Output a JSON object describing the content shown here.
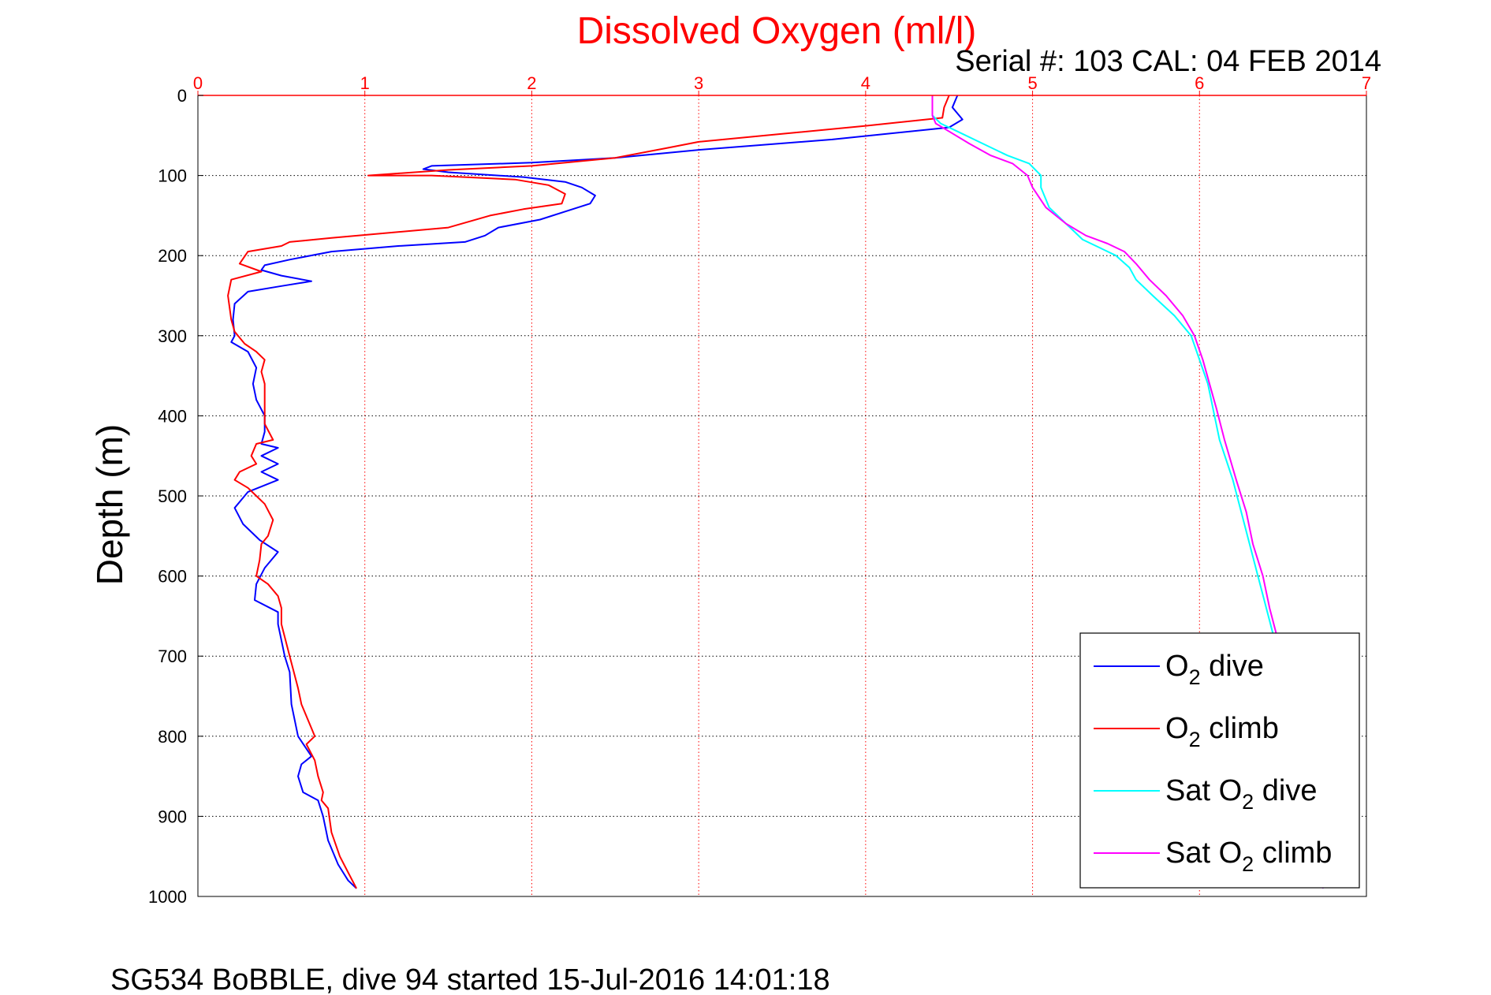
{
  "chart_data": {
    "type": "line",
    "title": "Dissolved Oxygen (ml/l)",
    "subtitle": "Serial #: 103  CAL: 04 FEB 2014",
    "ylabel": "Depth (m)",
    "footer": "SG534 BoBBLE, dive 94 started 15-Jul-2016 14:01:18",
    "xlim": [
      0,
      7
    ],
    "ylim": [
      0,
      1000
    ],
    "y_reversed": true,
    "x_axis_position": "top",
    "grid": true,
    "legend_position": "bottom-right",
    "xticks": [
      "0",
      "1",
      "2",
      "3",
      "4",
      "5",
      "6",
      "7"
    ],
    "yticks": [
      "0",
      "100",
      "200",
      "300",
      "400",
      "500",
      "600",
      "700",
      "800",
      "900",
      "1000"
    ],
    "colors": {
      "axis_x": "#ff0000",
      "grid_x": "#ff0000",
      "grid_y": "#000000"
    },
    "series": [
      {
        "key": "o2_dive",
        "legend": [
          "O",
          "2",
          " dive"
        ],
        "color": "#0000ff",
        "points": [
          [
            4.55,
            0
          ],
          [
            4.52,
            15
          ],
          [
            4.58,
            30
          ],
          [
            4.5,
            40
          ],
          [
            3.8,
            55
          ],
          [
            3.0,
            68
          ],
          [
            2.5,
            78
          ],
          [
            2.0,
            84
          ],
          [
            1.4,
            88
          ],
          [
            1.35,
            92
          ],
          [
            1.5,
            96
          ],
          [
            1.95,
            102
          ],
          [
            2.2,
            108
          ],
          [
            2.3,
            115
          ],
          [
            2.38,
            125
          ],
          [
            2.35,
            135
          ],
          [
            2.2,
            145
          ],
          [
            2.05,
            155
          ],
          [
            1.8,
            165
          ],
          [
            1.72,
            175
          ],
          [
            1.6,
            183
          ],
          [
            1.2,
            188
          ],
          [
            0.8,
            195
          ],
          [
            0.55,
            205
          ],
          [
            0.4,
            212
          ],
          [
            0.38,
            218
          ],
          [
            0.5,
            225
          ],
          [
            0.68,
            232
          ],
          [
            0.5,
            238
          ],
          [
            0.3,
            245
          ],
          [
            0.22,
            260
          ],
          [
            0.21,
            280
          ],
          [
            0.22,
            300
          ],
          [
            0.2,
            308
          ],
          [
            0.3,
            320
          ],
          [
            0.35,
            340
          ],
          [
            0.33,
            360
          ],
          [
            0.35,
            380
          ],
          [
            0.4,
            400
          ],
          [
            0.4,
            420
          ],
          [
            0.38,
            435
          ],
          [
            0.48,
            440
          ],
          [
            0.38,
            450
          ],
          [
            0.48,
            460
          ],
          [
            0.38,
            470
          ],
          [
            0.48,
            480
          ],
          [
            0.3,
            495
          ],
          [
            0.22,
            515
          ],
          [
            0.27,
            535
          ],
          [
            0.37,
            555
          ],
          [
            0.48,
            570
          ],
          [
            0.4,
            590
          ],
          [
            0.35,
            610
          ],
          [
            0.34,
            630
          ],
          [
            0.48,
            645
          ],
          [
            0.48,
            660
          ],
          [
            0.52,
            700
          ],
          [
            0.55,
            720
          ],
          [
            0.56,
            760
          ],
          [
            0.6,
            800
          ],
          [
            0.68,
            825
          ],
          [
            0.62,
            835
          ],
          [
            0.6,
            850
          ],
          [
            0.63,
            870
          ],
          [
            0.72,
            880
          ],
          [
            0.75,
            900
          ],
          [
            0.78,
            930
          ],
          [
            0.84,
            960
          ],
          [
            0.9,
            980
          ],
          [
            0.95,
            990
          ]
        ]
      },
      {
        "key": "o2_climb",
        "legend": [
          "O",
          "2",
          " climb"
        ],
        "color": "#ff0000",
        "points": [
          [
            4.5,
            0
          ],
          [
            4.47,
            15
          ],
          [
            4.46,
            28
          ],
          [
            4.0,
            38
          ],
          [
            3.5,
            48
          ],
          [
            3.0,
            58
          ],
          [
            2.8,
            66
          ],
          [
            2.5,
            78
          ],
          [
            2.0,
            88
          ],
          [
            1.5,
            93
          ],
          [
            1.02,
            100
          ],
          [
            1.4,
            100
          ],
          [
            1.9,
            105
          ],
          [
            2.1,
            112
          ],
          [
            2.2,
            123
          ],
          [
            2.18,
            135
          ],
          [
            1.95,
            142
          ],
          [
            1.75,
            150
          ],
          [
            1.5,
            165
          ],
          [
            0.8,
            178
          ],
          [
            0.55,
            183
          ],
          [
            0.5,
            188
          ],
          [
            0.3,
            195
          ],
          [
            0.25,
            210
          ],
          [
            0.38,
            220
          ],
          [
            0.2,
            230
          ],
          [
            0.18,
            250
          ],
          [
            0.2,
            280
          ],
          [
            0.22,
            295
          ],
          [
            0.28,
            310
          ],
          [
            0.35,
            320
          ],
          [
            0.4,
            330
          ],
          [
            0.38,
            345
          ],
          [
            0.4,
            360
          ],
          [
            0.4,
            390
          ],
          [
            0.4,
            410
          ],
          [
            0.45,
            430
          ],
          [
            0.35,
            435
          ],
          [
            0.32,
            450
          ],
          [
            0.35,
            460
          ],
          [
            0.25,
            470
          ],
          [
            0.22,
            480
          ],
          [
            0.3,
            490
          ],
          [
            0.35,
            500
          ],
          [
            0.4,
            510
          ],
          [
            0.45,
            530
          ],
          [
            0.42,
            550
          ],
          [
            0.38,
            560
          ],
          [
            0.37,
            580
          ],
          [
            0.35,
            600
          ],
          [
            0.42,
            610
          ],
          [
            0.48,
            625
          ],
          [
            0.5,
            640
          ],
          [
            0.5,
            660
          ],
          [
            0.55,
            700
          ],
          [
            0.6,
            740
          ],
          [
            0.62,
            760
          ],
          [
            0.68,
            790
          ],
          [
            0.7,
            800
          ],
          [
            0.65,
            810
          ],
          [
            0.7,
            830
          ],
          [
            0.72,
            850
          ],
          [
            0.75,
            870
          ],
          [
            0.74,
            880
          ],
          [
            0.78,
            890
          ],
          [
            0.8,
            920
          ],
          [
            0.85,
            950
          ],
          [
            0.9,
            970
          ],
          [
            0.95,
            990
          ]
        ]
      },
      {
        "key": "sat_dive",
        "legend": [
          "Sat O",
          "2",
          " dive"
        ],
        "color": "#00ffff",
        "points": [
          [
            4.4,
            0
          ],
          [
            4.4,
            25
          ],
          [
            4.45,
            35
          ],
          [
            4.55,
            45
          ],
          [
            4.7,
            60
          ],
          [
            4.85,
            75
          ],
          [
            4.98,
            85
          ],
          [
            5.05,
            100
          ],
          [
            5.05,
            115
          ],
          [
            5.1,
            140
          ],
          [
            5.2,
            160
          ],
          [
            5.3,
            180
          ],
          [
            5.4,
            190
          ],
          [
            5.5,
            200
          ],
          [
            5.58,
            215
          ],
          [
            5.62,
            230
          ],
          [
            5.72,
            250
          ],
          [
            5.85,
            275
          ],
          [
            5.95,
            300
          ],
          [
            6.0,
            330
          ],
          [
            6.05,
            360
          ],
          [
            6.08,
            390
          ],
          [
            6.12,
            430
          ],
          [
            6.2,
            480
          ],
          [
            6.25,
            520
          ],
          [
            6.3,
            560
          ],
          [
            6.35,
            600
          ],
          [
            6.4,
            640
          ],
          [
            6.45,
            680
          ],
          [
            6.5,
            720
          ],
          [
            6.55,
            760
          ],
          [
            6.6,
            800
          ],
          [
            6.62,
            840
          ],
          [
            6.66,
            880
          ],
          [
            6.7,
            920
          ],
          [
            6.72,
            960
          ],
          [
            6.74,
            990
          ]
        ]
      },
      {
        "key": "sat_climb",
        "legend": [
          "Sat O",
          "2",
          " climb"
        ],
        "color": "#ff00ff",
        "points": [
          [
            4.4,
            0
          ],
          [
            4.4,
            25
          ],
          [
            4.42,
            35
          ],
          [
            4.5,
            45
          ],
          [
            4.62,
            60
          ],
          [
            4.75,
            75
          ],
          [
            4.88,
            85
          ],
          [
            4.97,
            100
          ],
          [
            5.0,
            115
          ],
          [
            5.08,
            140
          ],
          [
            5.2,
            160
          ],
          [
            5.32,
            175
          ],
          [
            5.45,
            185
          ],
          [
            5.55,
            195
          ],
          [
            5.62,
            210
          ],
          [
            5.7,
            230
          ],
          [
            5.8,
            250
          ],
          [
            5.9,
            275
          ],
          [
            5.97,
            300
          ],
          [
            6.02,
            330
          ],
          [
            6.06,
            360
          ],
          [
            6.1,
            390
          ],
          [
            6.15,
            430
          ],
          [
            6.22,
            480
          ],
          [
            6.28,
            520
          ],
          [
            6.32,
            560
          ],
          [
            6.38,
            600
          ],
          [
            6.42,
            640
          ],
          [
            6.47,
            680
          ],
          [
            6.52,
            720
          ],
          [
            6.56,
            760
          ],
          [
            6.6,
            800
          ],
          [
            6.63,
            840
          ],
          [
            6.66,
            880
          ],
          [
            6.7,
            920
          ],
          [
            6.72,
            960
          ],
          [
            6.74,
            990
          ]
        ]
      }
    ]
  }
}
